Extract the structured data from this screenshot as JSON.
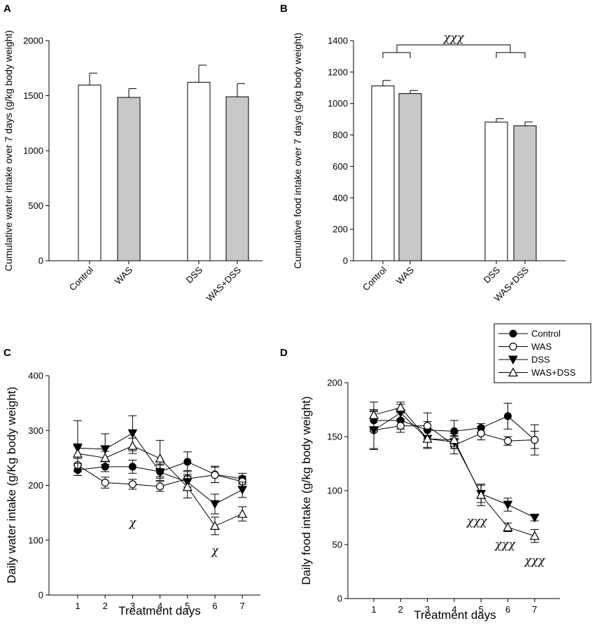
{
  "chart_data": [
    {
      "panel": "A",
      "type": "bar",
      "categories": [
        "Control",
        "WAS",
        "DSS",
        "WAS+DSS"
      ],
      "values": [
        1597,
        1484,
        1622,
        1490
      ],
      "errors": [
        108,
        80,
        155,
        120
      ],
      "bar_colors": [
        "#ffffff",
        "#c8c8c8",
        "#ffffff",
        "#c8c8c8"
      ],
      "ylabel": "Cumulative water intake over 7 days (g/kg body weight)",
      "xlabel": "",
      "ylim": [
        0,
        2000
      ],
      "yticks": [
        "0",
        "500",
        "1000",
        "1500",
        "2000"
      ]
    },
    {
      "panel": "B",
      "type": "bar",
      "categories": [
        "Control",
        "WAS",
        "DSS",
        "WAS+DSS"
      ],
      "values": [
        1112,
        1063,
        882,
        858
      ],
      "errors": [
        35,
        20,
        22,
        25
      ],
      "bar_colors": [
        "#ffffff",
        "#c8c8c8",
        "#ffffff",
        "#c8c8c8"
      ],
      "ylabel": "Cumulative food intake over 7 days (g/kg body weight)",
      "xlabel": "",
      "ylim": [
        0,
        1400
      ],
      "yticks": [
        "0",
        "200",
        "400",
        "600",
        "800",
        "1000",
        "1200",
        "1400"
      ],
      "annotation": "χχχ"
    },
    {
      "panel": "C",
      "type": "line",
      "x": [
        1,
        2,
        3,
        4,
        5,
        6,
        7
      ],
      "xticks": [
        "1",
        "2",
        "3",
        "4",
        "5",
        "6",
        "7"
      ],
      "series": [
        {
          "name": "Control",
          "values": [
            228,
            234,
            234,
            225,
            243,
            220,
            212
          ],
          "errors": [
            10,
            9,
            12,
            12,
            18,
            15,
            10
          ]
        },
        {
          "name": "WAS",
          "values": [
            237,
            205,
            202,
            198,
            212,
            219,
            207
          ],
          "errors": [
            12,
            10,
            9,
            9,
            15,
            14,
            10
          ]
        },
        {
          "name": "DSS",
          "values": [
            268,
            266,
            295,
            224,
            206,
            166,
            192
          ],
          "errors": [
            50,
            28,
            32,
            15,
            14,
            18,
            14
          ]
        },
        {
          "name": "WAS+DSS",
          "values": [
            258,
            250,
            272,
            249,
            197,
            126,
            148
          ],
          "errors": [
            18,
            12,
            14,
            33,
            20,
            16,
            13
          ]
        }
      ],
      "xlabel": "Treatment days",
      "ylabel": "Daily water intake (g/Kg body weight)",
      "ylim": [
        0,
        400
      ],
      "yticks": [
        "0",
        "100",
        "200",
        "300",
        "400"
      ],
      "annotations": [
        {
          "day": 3,
          "text": "χ"
        },
        {
          "day": 6,
          "text": "χ"
        }
      ]
    },
    {
      "panel": "D",
      "type": "line",
      "x": [
        1,
        2,
        3,
        4,
        5,
        6,
        7
      ],
      "xticks": [
        "1",
        "2",
        "3",
        "4",
        "5",
        "6",
        "7"
      ],
      "series": [
        {
          "name": "Control",
          "values": [
            165,
            165,
            156,
            155,
            158,
            169,
            147
          ],
          "errors": [
            10,
            8,
            8,
            10,
            4,
            12,
            8
          ]
        },
        {
          "name": "WAS",
          "values": [
            156,
            160,
            160,
            142,
            153,
            146,
            147
          ],
          "errors": [
            18,
            6,
            12,
            8,
            6,
            4,
            14
          ]
        },
        {
          "name": "DSS",
          "values": [
            156,
            172,
            148,
            145,
            97,
            87,
            75
          ],
          "errors": [
            17,
            8,
            8,
            6,
            8,
            6,
            3
          ]
        },
        {
          "name": "WAS+DSS",
          "values": [
            170,
            177,
            148,
            147,
            96,
            66,
            58
          ],
          "errors": [
            12,
            5,
            9,
            6,
            10,
            4,
            6
          ]
        }
      ],
      "xlabel": "Treatment days",
      "ylabel": "Daily food intake (g/kg body weight)",
      "ylim": [
        0,
        200
      ],
      "yticks": [
        "0",
        "50",
        "100",
        "150",
        "200"
      ],
      "annotations": [
        {
          "day": 5,
          "text": "χχχ"
        },
        {
          "day": 6,
          "text": "χχχ"
        },
        {
          "day": 7,
          "text": "χχχ"
        }
      ],
      "legend": [
        "Control",
        "WAS",
        "DSS",
        "WAS+DSS"
      ]
    }
  ]
}
